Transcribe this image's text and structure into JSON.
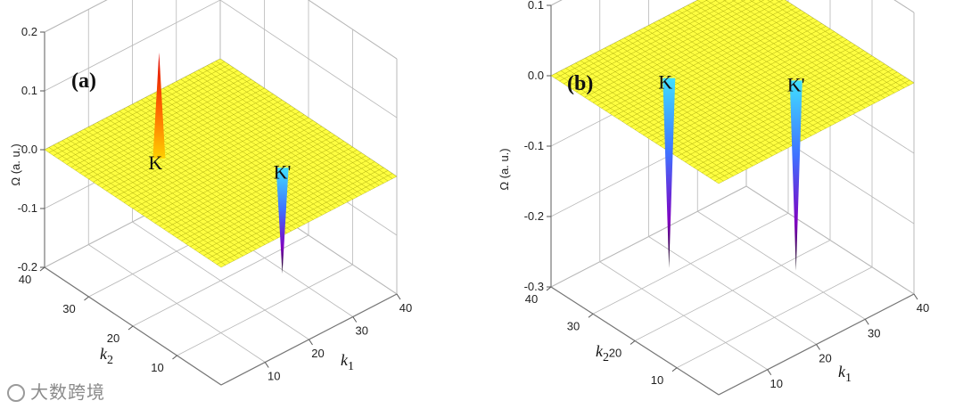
{
  "watermark": "大数跨境",
  "colors": {
    "surface": "#ffff40",
    "mesh": "#a0a000",
    "frame": "#b8b8b8",
    "spike_pos": [
      "#ffd000",
      "#ff6a00",
      "#e00000"
    ],
    "spike_neg": [
      "#40e0ff",
      "#4070ff",
      "#8000c0",
      "#101010"
    ]
  },
  "chart_data": [
    {
      "type": "surface",
      "panel_label": "(a)",
      "zlabel": "Ω (a. u.)",
      "xlabel": "k1",
      "ylabel": "k2",
      "zticks": [
        "-0.2",
        "-0.1",
        "0.0",
        "0.1",
        "0.2"
      ],
      "zlim": [
        -0.2,
        0.2
      ],
      "k1_ticks": [
        "10",
        "20",
        "30",
        "40"
      ],
      "k2_ticks": [
        "10",
        "20",
        "30",
        "40"
      ],
      "peaks": [
        {
          "label": "K",
          "k1": 13,
          "k2": 27,
          "omega": 0.18
        },
        {
          "label": "K'",
          "k1": 27,
          "k2": 13,
          "omega": -0.18
        }
      ]
    },
    {
      "type": "surface",
      "panel_label": "(b)",
      "zlabel": "Ω (a. u.)",
      "xlabel": "k1",
      "ylabel": "k2",
      "zticks": [
        "-0.3",
        "-0.2",
        "-0.1",
        "0.0",
        "0.1"
      ],
      "zlim": [
        -0.3,
        0.1
      ],
      "k1_ticks": [
        "10",
        "20",
        "30",
        "40"
      ],
      "k2_ticks": [
        "10",
        "20",
        "30",
        "40"
      ],
      "peaks": [
        {
          "label": "K",
          "k1": 13,
          "k2": 27,
          "omega": -0.27
        },
        {
          "label": "K'",
          "k1": 27,
          "k2": 13,
          "omega": -0.27
        }
      ]
    }
  ]
}
